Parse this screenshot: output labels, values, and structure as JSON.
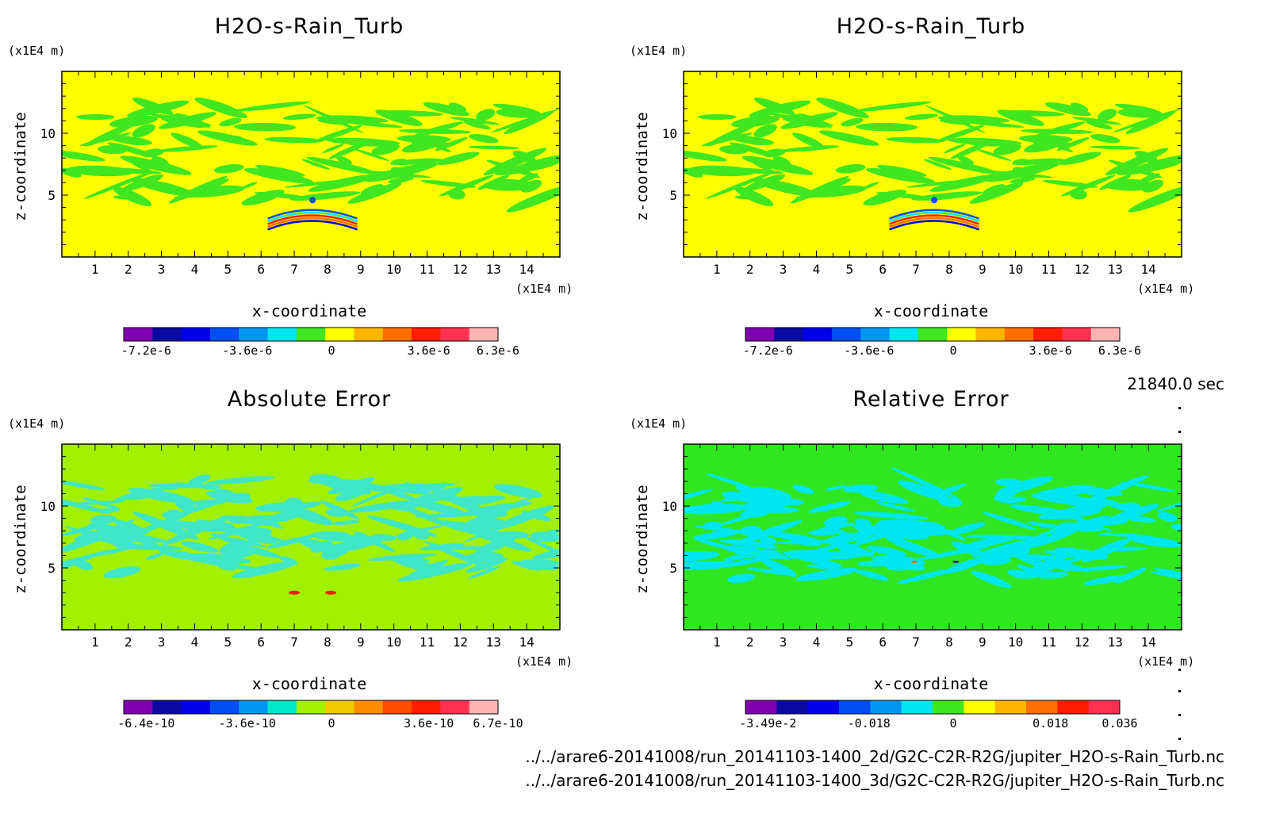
{
  "timestamp": "21840.0 sec",
  "files": [
    "../../arare6-20141008/run_20141103-1400_2d/G2C-C2R-R2G/jupiter_H2O-s-Rain_Turb.nc",
    "../../arare6-20141008/run_20141103-1400_3d/G2C-C2R-R2G/jupiter_H2O-s-Rain_Turb.nc"
  ],
  "chart_data": [
    {
      "type": "heatmap",
      "title": "H2O-s-Rain_Turb",
      "xlabel": "x-coordinate",
      "ylabel": "z-coordinate",
      "xunit": "(x1E4 m)",
      "yunit": "(x1E4 m)",
      "xlim": [
        0,
        15
      ],
      "ylim": [
        0,
        15
      ],
      "xticks": [
        "1",
        "2",
        "3",
        "4",
        "5",
        "6",
        "7",
        "8",
        "9",
        "10",
        "11",
        "12",
        "13",
        "14"
      ],
      "yticks": [
        "5",
        "10"
      ],
      "colorbar": {
        "colors": [
          "#8000b0",
          "#0a0aa0",
          "#0000e6",
          "#0050f0",
          "#0096f0",
          "#00e6f0",
          "#40e620",
          "#ffff00",
          "#ffb400",
          "#ff6e00",
          "#ff1e00",
          "#ff3250",
          "#ffb4b4"
        ],
        "labels": [
          "-7.2e-6",
          "-3.6e-6",
          "0",
          "3.6e-6",
          "6.3e-6"
        ]
      },
      "background_color": "#ffff00",
      "pattern_color": "#40e620"
    },
    {
      "type": "heatmap",
      "title": "H2O-s-Rain_Turb",
      "xlabel": "x-coordinate",
      "ylabel": "z-coordinate",
      "xunit": "(x1E4 m)",
      "yunit": "(x1E4 m)",
      "xlim": [
        0,
        15
      ],
      "ylim": [
        0,
        15
      ],
      "xticks": [
        "1",
        "2",
        "3",
        "4",
        "5",
        "6",
        "7",
        "8",
        "9",
        "10",
        "11",
        "12",
        "13",
        "14"
      ],
      "yticks": [
        "5",
        "10"
      ],
      "colorbar": {
        "colors": [
          "#8000b0",
          "#0a0aa0",
          "#0000e6",
          "#0050f0",
          "#0096f0",
          "#00e6f0",
          "#40e620",
          "#ffff00",
          "#ffb400",
          "#ff6e00",
          "#ff1e00",
          "#ff3250",
          "#ffb4b4"
        ],
        "labels": [
          "-7.2e-6",
          "-3.6e-6",
          "0",
          "3.6e-6",
          "6.3e-6"
        ]
      },
      "background_color": "#ffff00",
      "pattern_color": "#40e620"
    },
    {
      "type": "heatmap",
      "title": "Absolute Error",
      "xlabel": "x-coordinate",
      "ylabel": "z-coordinate",
      "xunit": "(x1E4 m)",
      "yunit": "(x1E4 m)",
      "xlim": [
        0,
        15
      ],
      "ylim": [
        0,
        15
      ],
      "xticks": [
        "1",
        "2",
        "3",
        "4",
        "5",
        "6",
        "7",
        "8",
        "9",
        "10",
        "11",
        "12",
        "13",
        "14"
      ],
      "yticks": [
        "5",
        "10"
      ],
      "colorbar": {
        "colors": [
          "#8000b0",
          "#0a0aa0",
          "#0000e6",
          "#0050f0",
          "#0096f0",
          "#00e6c8",
          "#a0f000",
          "#f0c800",
          "#ff8c00",
          "#ff5000",
          "#ff1e00",
          "#ff3250",
          "#ffb4b4"
        ],
        "labels": [
          "-6.4e-10",
          "-3.6e-10",
          "0",
          "3.6e-10",
          "6.7e-10"
        ]
      },
      "background_color": "#a0f000",
      "pattern_color": "#40e6c8"
    },
    {
      "type": "heatmap",
      "title": "Relative Error",
      "xlabel": "x-coordinate",
      "ylabel": "z-coordinate",
      "xunit": "(x1E4 m)",
      "yunit": "(x1E4 m)",
      "xlim": [
        0,
        15
      ],
      "ylim": [
        0,
        15
      ],
      "xticks": [
        "1",
        "2",
        "3",
        "4",
        "5",
        "6",
        "7",
        "8",
        "9",
        "10",
        "11",
        "12",
        "13",
        "14"
      ],
      "yticks": [
        "5",
        "10"
      ],
      "colorbar": {
        "colors": [
          "#8000b0",
          "#0a0aa0",
          "#0000e6",
          "#0050f0",
          "#0096f0",
          "#00e6f0",
          "#40e620",
          "#ffff00",
          "#ffb400",
          "#ff6e00",
          "#ff1e00",
          "#ff3250"
        ],
        "labels": [
          "-3.49e-2",
          "-0.018",
          "0",
          "0.018",
          "0.036"
        ]
      },
      "background_color": "#30e620",
      "pattern_color": "#00e6f0"
    }
  ]
}
